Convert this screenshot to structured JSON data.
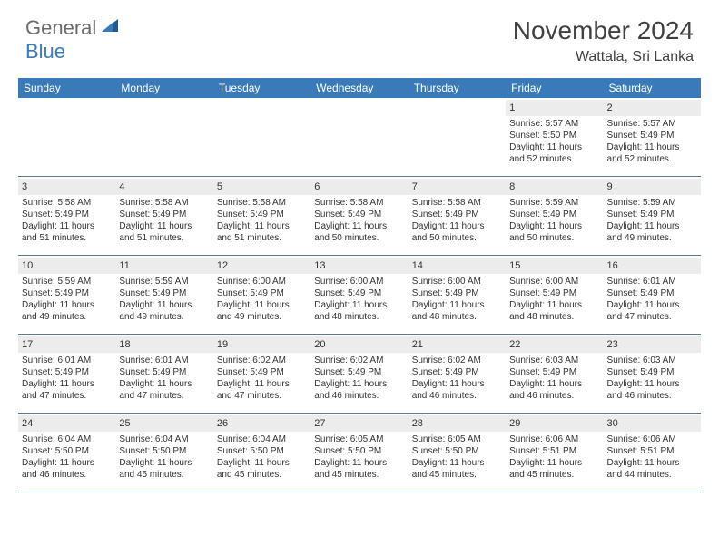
{
  "logo": {
    "general": "General",
    "blue": "Blue"
  },
  "header": {
    "month_title": "November 2024",
    "location": "Wattala, Sri Lanka"
  },
  "colors": {
    "header_bar": "#3a7ab8",
    "daynum_bg": "#ececec",
    "row_border": "#5a7a9a",
    "title_color": "#414141",
    "logo_gray": "#6a6a6a",
    "logo_blue": "#3a7ab8"
  },
  "day_names": [
    "Sunday",
    "Monday",
    "Tuesday",
    "Wednesday",
    "Thursday",
    "Friday",
    "Saturday"
  ],
  "weeks": [
    [
      {
        "blank": true
      },
      {
        "blank": true
      },
      {
        "blank": true
      },
      {
        "blank": true
      },
      {
        "blank": true
      },
      {
        "n": "1",
        "sr": "Sunrise: 5:57 AM",
        "ss": "Sunset: 5:50 PM",
        "d1": "Daylight: 11 hours",
        "d2": "and 52 minutes."
      },
      {
        "n": "2",
        "sr": "Sunrise: 5:57 AM",
        "ss": "Sunset: 5:49 PM",
        "d1": "Daylight: 11 hours",
        "d2": "and 52 minutes."
      }
    ],
    [
      {
        "n": "3",
        "sr": "Sunrise: 5:58 AM",
        "ss": "Sunset: 5:49 PM",
        "d1": "Daylight: 11 hours",
        "d2": "and 51 minutes."
      },
      {
        "n": "4",
        "sr": "Sunrise: 5:58 AM",
        "ss": "Sunset: 5:49 PM",
        "d1": "Daylight: 11 hours",
        "d2": "and 51 minutes."
      },
      {
        "n": "5",
        "sr": "Sunrise: 5:58 AM",
        "ss": "Sunset: 5:49 PM",
        "d1": "Daylight: 11 hours",
        "d2": "and 51 minutes."
      },
      {
        "n": "6",
        "sr": "Sunrise: 5:58 AM",
        "ss": "Sunset: 5:49 PM",
        "d1": "Daylight: 11 hours",
        "d2": "and 50 minutes."
      },
      {
        "n": "7",
        "sr": "Sunrise: 5:58 AM",
        "ss": "Sunset: 5:49 PM",
        "d1": "Daylight: 11 hours",
        "d2": "and 50 minutes."
      },
      {
        "n": "8",
        "sr": "Sunrise: 5:59 AM",
        "ss": "Sunset: 5:49 PM",
        "d1": "Daylight: 11 hours",
        "d2": "and 50 minutes."
      },
      {
        "n": "9",
        "sr": "Sunrise: 5:59 AM",
        "ss": "Sunset: 5:49 PM",
        "d1": "Daylight: 11 hours",
        "d2": "and 49 minutes."
      }
    ],
    [
      {
        "n": "10",
        "sr": "Sunrise: 5:59 AM",
        "ss": "Sunset: 5:49 PM",
        "d1": "Daylight: 11 hours",
        "d2": "and 49 minutes."
      },
      {
        "n": "11",
        "sr": "Sunrise: 5:59 AM",
        "ss": "Sunset: 5:49 PM",
        "d1": "Daylight: 11 hours",
        "d2": "and 49 minutes."
      },
      {
        "n": "12",
        "sr": "Sunrise: 6:00 AM",
        "ss": "Sunset: 5:49 PM",
        "d1": "Daylight: 11 hours",
        "d2": "and 49 minutes."
      },
      {
        "n": "13",
        "sr": "Sunrise: 6:00 AM",
        "ss": "Sunset: 5:49 PM",
        "d1": "Daylight: 11 hours",
        "d2": "and 48 minutes."
      },
      {
        "n": "14",
        "sr": "Sunrise: 6:00 AM",
        "ss": "Sunset: 5:49 PM",
        "d1": "Daylight: 11 hours",
        "d2": "and 48 minutes."
      },
      {
        "n": "15",
        "sr": "Sunrise: 6:00 AM",
        "ss": "Sunset: 5:49 PM",
        "d1": "Daylight: 11 hours",
        "d2": "and 48 minutes."
      },
      {
        "n": "16",
        "sr": "Sunrise: 6:01 AM",
        "ss": "Sunset: 5:49 PM",
        "d1": "Daylight: 11 hours",
        "d2": "and 47 minutes."
      }
    ],
    [
      {
        "n": "17",
        "sr": "Sunrise: 6:01 AM",
        "ss": "Sunset: 5:49 PM",
        "d1": "Daylight: 11 hours",
        "d2": "and 47 minutes."
      },
      {
        "n": "18",
        "sr": "Sunrise: 6:01 AM",
        "ss": "Sunset: 5:49 PM",
        "d1": "Daylight: 11 hours",
        "d2": "and 47 minutes."
      },
      {
        "n": "19",
        "sr": "Sunrise: 6:02 AM",
        "ss": "Sunset: 5:49 PM",
        "d1": "Daylight: 11 hours",
        "d2": "and 47 minutes."
      },
      {
        "n": "20",
        "sr": "Sunrise: 6:02 AM",
        "ss": "Sunset: 5:49 PM",
        "d1": "Daylight: 11 hours",
        "d2": "and 46 minutes."
      },
      {
        "n": "21",
        "sr": "Sunrise: 6:02 AM",
        "ss": "Sunset: 5:49 PM",
        "d1": "Daylight: 11 hours",
        "d2": "and 46 minutes."
      },
      {
        "n": "22",
        "sr": "Sunrise: 6:03 AM",
        "ss": "Sunset: 5:49 PM",
        "d1": "Daylight: 11 hours",
        "d2": "and 46 minutes."
      },
      {
        "n": "23",
        "sr": "Sunrise: 6:03 AM",
        "ss": "Sunset: 5:49 PM",
        "d1": "Daylight: 11 hours",
        "d2": "and 46 minutes."
      }
    ],
    [
      {
        "n": "24",
        "sr": "Sunrise: 6:04 AM",
        "ss": "Sunset: 5:50 PM",
        "d1": "Daylight: 11 hours",
        "d2": "and 46 minutes."
      },
      {
        "n": "25",
        "sr": "Sunrise: 6:04 AM",
        "ss": "Sunset: 5:50 PM",
        "d1": "Daylight: 11 hours",
        "d2": "and 45 minutes."
      },
      {
        "n": "26",
        "sr": "Sunrise: 6:04 AM",
        "ss": "Sunset: 5:50 PM",
        "d1": "Daylight: 11 hours",
        "d2": "and 45 minutes."
      },
      {
        "n": "27",
        "sr": "Sunrise: 6:05 AM",
        "ss": "Sunset: 5:50 PM",
        "d1": "Daylight: 11 hours",
        "d2": "and 45 minutes."
      },
      {
        "n": "28",
        "sr": "Sunrise: 6:05 AM",
        "ss": "Sunset: 5:50 PM",
        "d1": "Daylight: 11 hours",
        "d2": "and 45 minutes."
      },
      {
        "n": "29",
        "sr": "Sunrise: 6:06 AM",
        "ss": "Sunset: 5:51 PM",
        "d1": "Daylight: 11 hours",
        "d2": "and 45 minutes."
      },
      {
        "n": "30",
        "sr": "Sunrise: 6:06 AM",
        "ss": "Sunset: 5:51 PM",
        "d1": "Daylight: 11 hours",
        "d2": "and 44 minutes."
      }
    ]
  ]
}
